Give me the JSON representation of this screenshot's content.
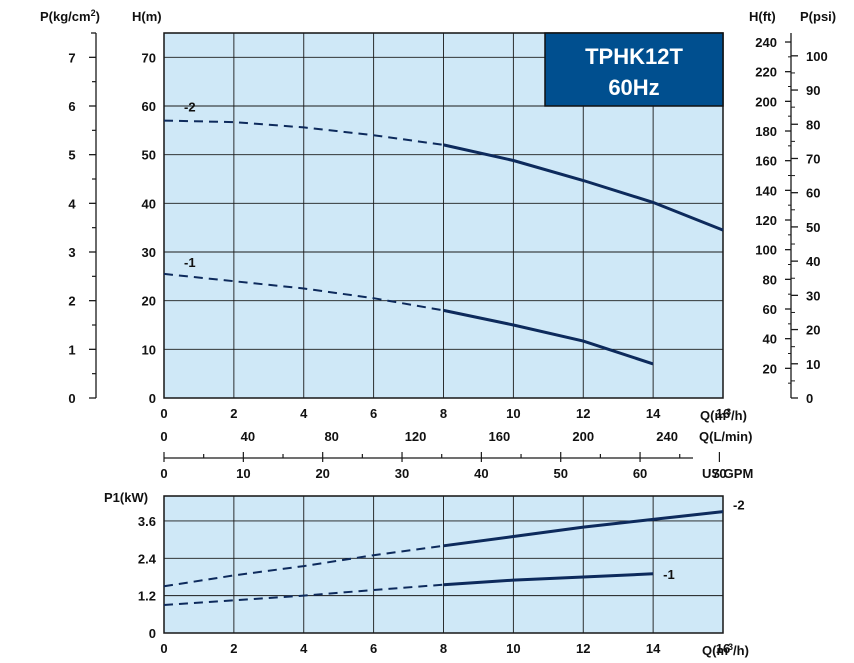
{
  "colors": {
    "plot_bg": "#cfe8f7",
    "curve": "#0d2a5c",
    "grid": "#1a1a1a",
    "title_bg": "#004f8f"
  },
  "title": {
    "line1": "TPHK12T",
    "line2": "60Hz"
  },
  "chart_data": [
    {
      "type": "line",
      "name": "head-curve",
      "x": [
        0,
        2,
        4,
        6,
        8,
        10,
        12,
        14,
        16
      ],
      "xlim": [
        0,
        16
      ],
      "ylim": [
        0,
        75
      ],
      "x_ticks": [
        "0",
        "2",
        "4",
        "6",
        "8",
        "10",
        "12",
        "14",
        "16"
      ],
      "y_ticks": [
        "0",
        "10",
        "20",
        "30",
        "40",
        "50",
        "60",
        "70"
      ],
      "xlabel": "Q(m3/h)",
      "ylabel": "H(m)",
      "series": [
        {
          "name": "-2",
          "x": [
            0,
            2,
            4,
            6,
            8,
            10,
            12,
            14,
            16
          ],
          "values": [
            57,
            56.7,
            55.6,
            54,
            52,
            48.8,
            44.7,
            40.2,
            34.5
          ],
          "dashed_until_x": 8
        },
        {
          "name": "-1",
          "x": [
            0,
            2,
            4,
            6,
            8,
            10,
            12,
            14
          ],
          "values": [
            25.5,
            24,
            22.5,
            20.5,
            18,
            15,
            11.7,
            7
          ],
          "dashed_until_x": 8
        }
      ],
      "left_axis": {
        "label": "P(kg/cm2)",
        "ticks": [
          "0",
          "1",
          "2",
          "3",
          "4",
          "5",
          "6",
          "7"
        ]
      },
      "right_axis_ft": {
        "label": "H(ft)",
        "ticks": [
          "20",
          "40",
          "60",
          "80",
          "100",
          "120",
          "140",
          "160",
          "180",
          "200",
          "220",
          "240"
        ]
      },
      "right_axis_psi": {
        "label": "P(psi)",
        "ticks": [
          "0",
          "10",
          "20",
          "30",
          "40",
          "50",
          "60",
          "70",
          "80",
          "90",
          "100"
        ]
      },
      "lmin_axis": {
        "label": "Q(L/min)",
        "ticks": [
          "0",
          "40",
          "80",
          "120",
          "160",
          "200",
          "240"
        ]
      },
      "gpm_axis": {
        "label": "US GPM",
        "ticks": [
          "0",
          "10",
          "20",
          "30",
          "40",
          "50",
          "60",
          "70"
        ]
      }
    },
    {
      "type": "line",
      "name": "power-curve",
      "xlim": [
        0,
        16
      ],
      "ylim": [
        0,
        4.4
      ],
      "x_ticks": [
        "0",
        "2",
        "4",
        "6",
        "8",
        "10",
        "12",
        "14",
        "16"
      ],
      "y_ticks": [
        "0",
        "1.2",
        "2.4",
        "3.6"
      ],
      "xlabel": "Q(m3/h)",
      "ylabel": "P1(kW)",
      "series": [
        {
          "name": "-2",
          "x": [
            0,
            2,
            4,
            6,
            8,
            10,
            12,
            14,
            16
          ],
          "values": [
            1.5,
            1.85,
            2.15,
            2.5,
            2.8,
            3.1,
            3.4,
            3.65,
            3.9
          ],
          "dashed_until_x": 8
        },
        {
          "name": "-1",
          "x": [
            0,
            2,
            4,
            6,
            8,
            10,
            12,
            14
          ],
          "values": [
            0.9,
            1.05,
            1.2,
            1.38,
            1.55,
            1.7,
            1.8,
            1.9
          ],
          "dashed_until_x": 8
        }
      ]
    }
  ],
  "labels": {
    "q_m3h_prefix": "Q(m",
    "q_m3h_sup": "3",
    "q_m3h_suffix": "/h)",
    "p_kgcm2_prefix": "P(kg/cm",
    "p_kgcm2_sup": "2",
    "p_kgcm2_suffix": ")"
  }
}
